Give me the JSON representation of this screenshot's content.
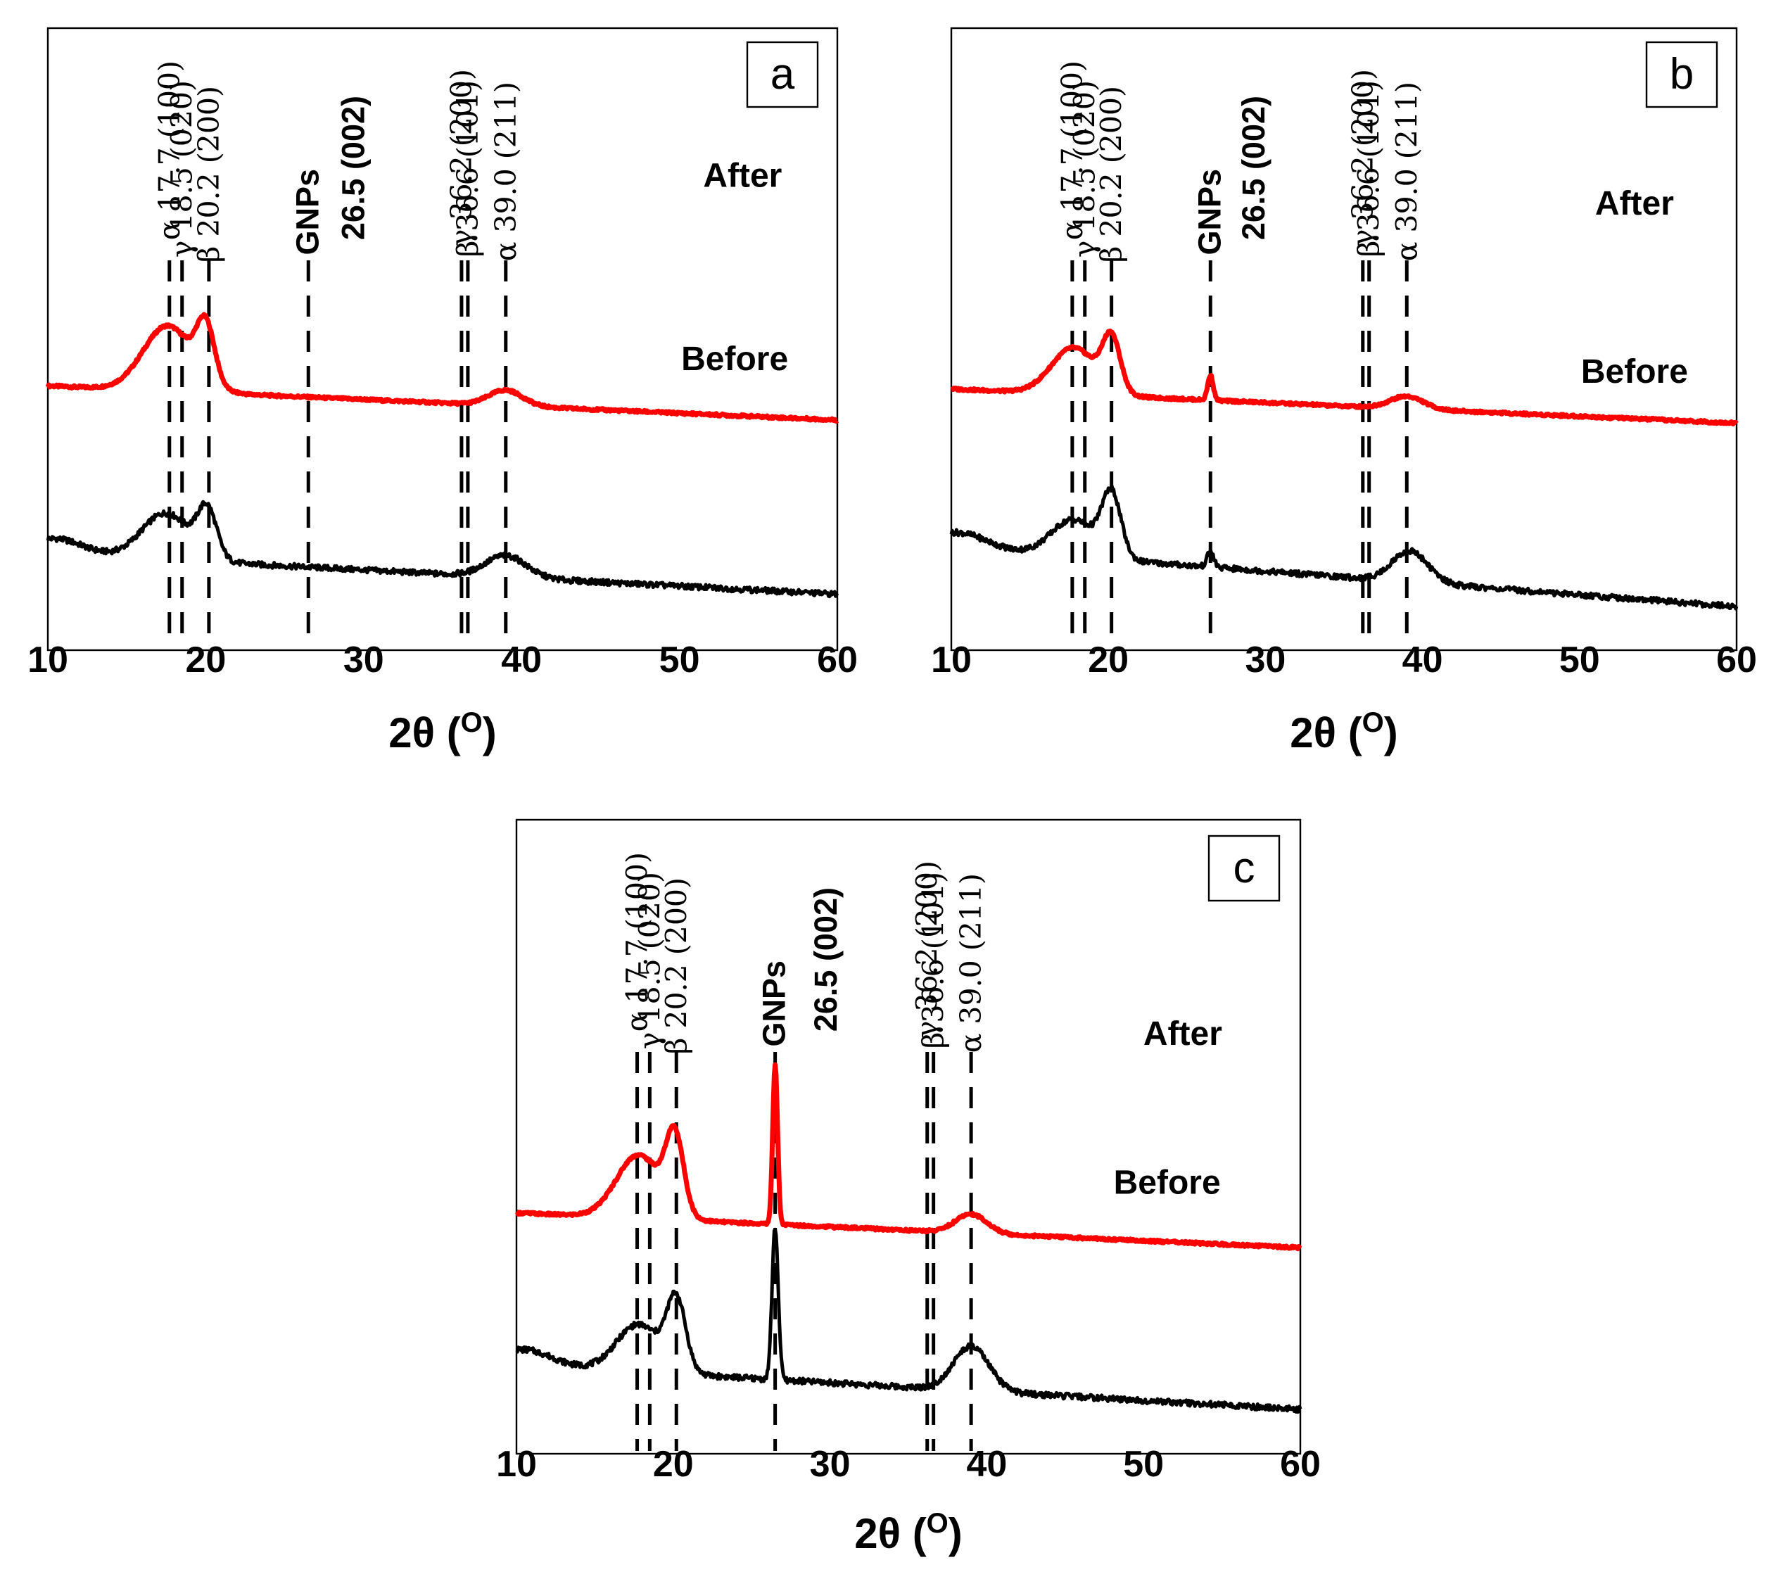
{
  "chart_data": [
    {
      "type": "line",
      "panel": "a",
      "title": "",
      "xlabel": "2θ (",
      "xlabel_sup": "O",
      "xlabel_close": ")",
      "ylabel": "",
      "xlim": [
        10,
        60
      ],
      "xticks": [
        "10",
        "20",
        "30",
        "40",
        "50",
        "60"
      ],
      "reference_peaks": [
        {
          "x": 17.7,
          "label": "α 17.7 (100)",
          "bold": false,
          "span": "full"
        },
        {
          "x": 18.5,
          "label": "γ 18.5 (020)",
          "bold": false,
          "span": "full"
        },
        {
          "x": 20.2,
          "label": "β 20.2 (200)",
          "bold": false,
          "span": "full"
        },
        {
          "x": 26.5,
          "label": "GNPs",
          "bold": true,
          "span": "full"
        },
        {
          "x": 29.4,
          "label": "26.5 (002)",
          "bold": true,
          "span": "none"
        },
        {
          "x": 36.2,
          "label": "γ 36.2 (200)",
          "bold": false,
          "span": "full"
        },
        {
          "x": 36.6,
          "label": "β 36.6 (101)",
          "bold": false,
          "span": "full"
        },
        {
          "x": 39.0,
          "label": "α 39.0 (211)",
          "bold": false,
          "span": "full"
        }
      ],
      "series": [
        {
          "name": "After",
          "color": "#ff0000",
          "baseline": 0.425,
          "end": 0.37,
          "peaks": [
            [
              17.6,
              0.105,
              2.2
            ],
            [
              20.0,
              0.09,
              0.8
            ],
            [
              39.0,
              0.025,
              1.5
            ]
          ]
        },
        {
          "name": "Before",
          "color": "#000000",
          "baseline": 0.155,
          "end": 0.09,
          "peaks": [
            [
              17.5,
              0.075,
              2.2
            ],
            [
              20.1,
              0.075,
              0.85
            ],
            [
              39.0,
              0.035,
              1.8
            ]
          ]
        }
      ]
    },
    {
      "type": "line",
      "panel": "b",
      "title": "",
      "xlabel": "2θ (",
      "xlabel_sup": "O",
      "xlabel_close": ")",
      "ylabel": "",
      "xlim": [
        10,
        60
      ],
      "xticks": [
        "10",
        "20",
        "30",
        "40",
        "50",
        "60"
      ],
      "reference_peaks": [
        {
          "x": 17.7,
          "label": "α 17.7 (100)",
          "bold": false,
          "span": "full"
        },
        {
          "x": 18.5,
          "label": "γ 18.5 (020)",
          "bold": false,
          "span": "full"
        },
        {
          "x": 20.2,
          "label": "β 20.2 (200)",
          "bold": false,
          "span": "full"
        },
        {
          "x": 26.5,
          "label": "GNPs",
          "bold": true,
          "span": "full"
        },
        {
          "x": 29.3,
          "label": "26.5 (002)",
          "bold": true,
          "span": "none"
        },
        {
          "x": 36.2,
          "label": "γ 36.2 (200)",
          "bold": false,
          "span": "full"
        },
        {
          "x": 36.6,
          "label": "β 36.6 (101)",
          "bold": false,
          "span": "full"
        },
        {
          "x": 39.0,
          "label": "α 39.0 (211)",
          "bold": false,
          "span": "full"
        }
      ],
      "series": [
        {
          "name": "After",
          "color": "#ff0000",
          "baseline": 0.42,
          "end": 0.365,
          "peaks": [
            [
              17.8,
              0.075,
              2.0
            ],
            [
              20.2,
              0.085,
              0.8
            ],
            [
              26.5,
              0.04,
              0.25
            ],
            [
              39.0,
              0.02,
              1.5
            ]
          ]
        },
        {
          "name": "Before",
          "color": "#000000",
          "baseline": 0.165,
          "end": 0.07,
          "peaks": [
            [
              17.8,
              0.06,
              2.0
            ],
            [
              20.2,
              0.1,
              0.85
            ],
            [
              26.5,
              0.025,
              0.3
            ],
            [
              39.2,
              0.05,
              1.6
            ]
          ]
        }
      ]
    },
    {
      "type": "line",
      "panel": "c",
      "title": "",
      "xlabel": "2θ (",
      "xlabel_sup": "O",
      "xlabel_close": ")",
      "ylabel": "",
      "xlim": [
        10,
        60
      ],
      "xticks": [
        "10",
        "20",
        "30",
        "40",
        "50",
        "60"
      ],
      "reference_peaks": [
        {
          "x": 17.7,
          "label": "α 17.7 (100)",
          "bold": false,
          "span": "full"
        },
        {
          "x": 18.5,
          "label": "γ 18.5 (020)",
          "bold": false,
          "span": "full"
        },
        {
          "x": 20.2,
          "label": "β 20.2 (200)",
          "bold": false,
          "span": "full"
        },
        {
          "x": 26.5,
          "label": "GNPs",
          "bold": true,
          "span": "full"
        },
        {
          "x": 29.8,
          "label": "26.5 (002)",
          "bold": true,
          "span": "none"
        },
        {
          "x": 36.2,
          "label": "γ 36.2 (200)",
          "bold": false,
          "span": "full"
        },
        {
          "x": 36.6,
          "label": "β 36.6 (101)",
          "bold": false,
          "span": "full"
        },
        {
          "x": 39.0,
          "label": "α 39.0 (211)",
          "bold": false,
          "span": "full"
        }
      ],
      "series": [
        {
          "name": "After",
          "color": "#ff0000",
          "baseline": 0.38,
          "end": 0.325,
          "peaks": [
            [
              17.8,
              0.1,
              2.0
            ],
            [
              20.1,
              0.12,
              0.8
            ],
            [
              26.5,
              0.25,
              0.22
            ],
            [
              39.0,
              0.03,
              1.4
            ]
          ]
        },
        {
          "name": "Before",
          "color": "#000000",
          "baseline": 0.14,
          "end": 0.07,
          "peaks": [
            [
              17.8,
              0.075,
              2.0
            ],
            [
              20.2,
              0.11,
              0.85
            ],
            [
              26.5,
              0.24,
              0.28
            ],
            [
              39.0,
              0.07,
              1.6
            ]
          ]
        }
      ]
    }
  ]
}
